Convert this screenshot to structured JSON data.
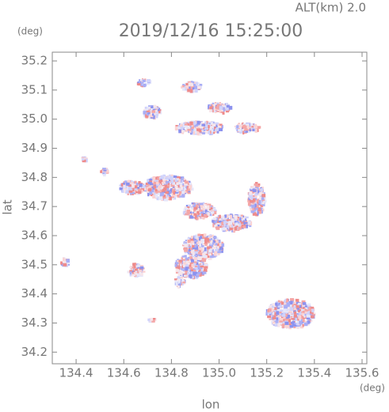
{
  "chart_data": {
    "type": "map",
    "title": "2019/12/16 15:25:00",
    "subtitle": "ALT(km) 2.0",
    "x_label": "lon",
    "y_label": "lat",
    "x_unit": "(deg)",
    "y_unit": "(deg)",
    "xlim": [
      134.3,
      135.62
    ],
    "ylim": [
      34.16,
      35.23
    ],
    "xticks": [
      134.4,
      134.6,
      134.8,
      {
        "value": 135,
        "label": "135.0"
      },
      135.2,
      135.4,
      135.6
    ],
    "yticks": [
      34.2,
      34.3,
      34.4,
      34.5,
      34.6,
      34.7,
      34.8,
      34.9,
      {
        "value": 35,
        "label": "35.0"
      },
      35.1,
      35.2
    ]
  }
}
